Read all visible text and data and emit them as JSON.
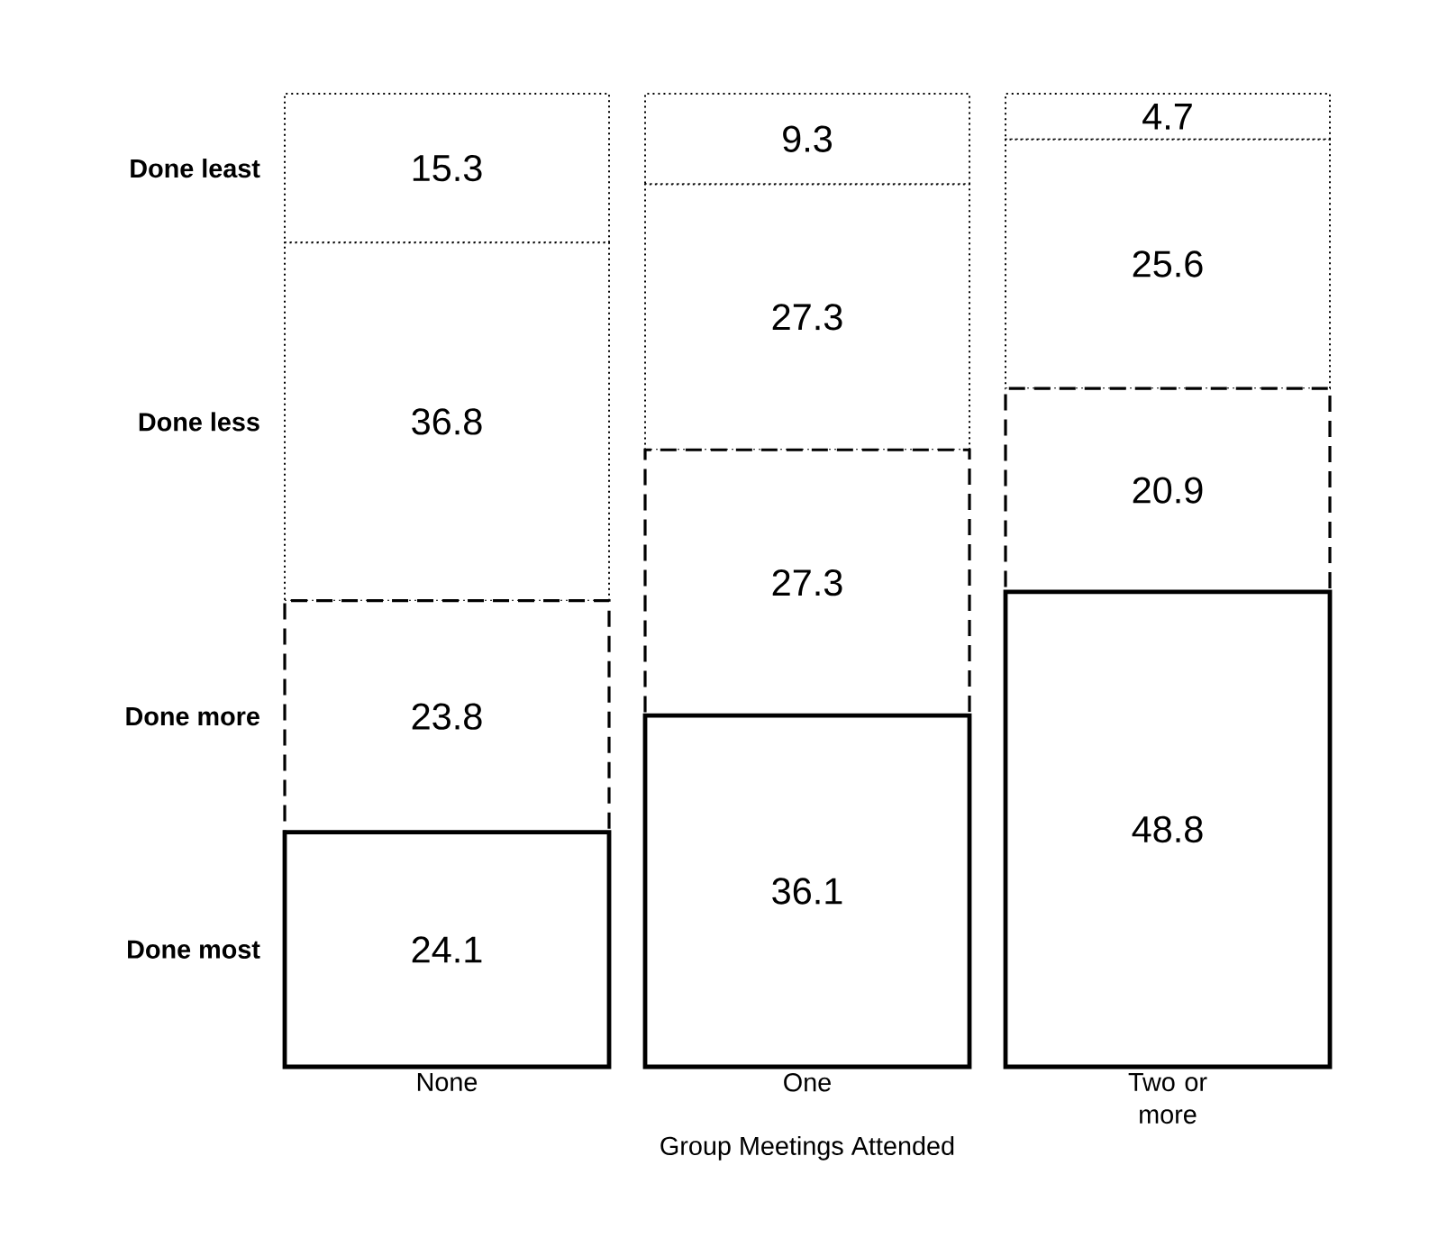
{
  "chart_data": {
    "type": "bar",
    "stacked": true,
    "xlabel": "Group Meetings Attended",
    "categories": [
      "None",
      "One",
      "Two or more"
    ],
    "data_labels": true,
    "series": [
      {
        "name": "Done most",
        "color": "#000000",
        "line_style": "solid",
        "values": [
          24.1,
          36.1,
          48.8
        ]
      },
      {
        "name": "Done more",
        "color": "#000000",
        "line_style": "dashed",
        "values": [
          23.8,
          27.3,
          20.9
        ]
      },
      {
        "name": "Done less",
        "color": "#000000",
        "line_style": "dotted",
        "values": [
          36.8,
          27.3,
          25.6
        ]
      },
      {
        "name": "Done least",
        "color": "#000000",
        "line_style": "dotted",
        "values": [
          15.3,
          9.3,
          4.7
        ]
      }
    ]
  }
}
